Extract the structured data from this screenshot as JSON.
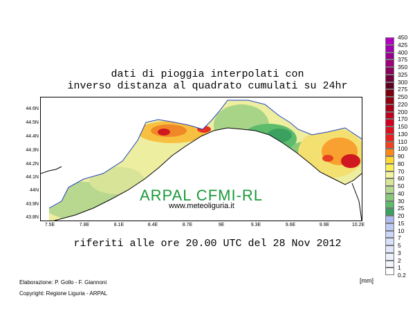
{
  "title": {
    "line1": "dati di pioggia interpolati con",
    "line2": "inverso distanza al quadrato cumulati su 24hr"
  },
  "subtitle": "riferiti alle ore 20.00 UTC del 28 Nov 2012",
  "lat_labels": [
    "44.6N",
    "44.5N",
    "44.4N",
    "44.3N",
    "44.2N",
    "44.1N",
    "44N",
    "43.9N",
    "43.8N"
  ],
  "lon_labels": [
    "7.5E",
    "7.8E",
    "8.1E",
    "8.4E",
    "8.7E",
    "9E",
    "9.3E",
    "9.6E",
    "9.9E",
    "10.2E"
  ],
  "watermark": {
    "brand": "ARPAL CFMI-RL",
    "url": "www.meteoliguria.it"
  },
  "footer": {
    "credits": "Elaborazione: P. Gollo - F. Giannoni",
    "copyright": "Copyright: Regione Liguria - ARPAL"
  },
  "legend": {
    "unit": "[mm]",
    "ticks": [
      "450",
      "425",
      "400",
      "375",
      "350",
      "325",
      "300",
      "275",
      "250",
      "220",
      "200",
      "170",
      "150",
      "130",
      "110",
      "100",
      "90",
      "80",
      "70",
      "60",
      "50",
      "40",
      "30",
      "25",
      "20",
      "15",
      "10",
      "7",
      "5",
      "3",
      "2",
      "1",
      "0.2"
    ],
    "colors": [
      "#b000c0",
      "#a000b0",
      "#9a0090",
      "#a0007a",
      "#8a005a",
      "#70003a",
      "#5a0020",
      "#7a0010",
      "#900010",
      "#a80018",
      "#c00020",
      "#d00020",
      "#dc1020",
      "#e82020",
      "#f04020",
      "#f88818",
      "#ffd830",
      "#f8f058",
      "#f4f4a0",
      "#d8e498",
      "#b4d890",
      "#88c878",
      "#5cbc6c",
      "#3ca060",
      "#b0bcf0",
      "#c0cbf4",
      "#ccd6f8",
      "#d8e0fa",
      "#e2e8fb",
      "#ebf0fc",
      "#f2f5fd",
      "#ffffff"
    ]
  }
}
